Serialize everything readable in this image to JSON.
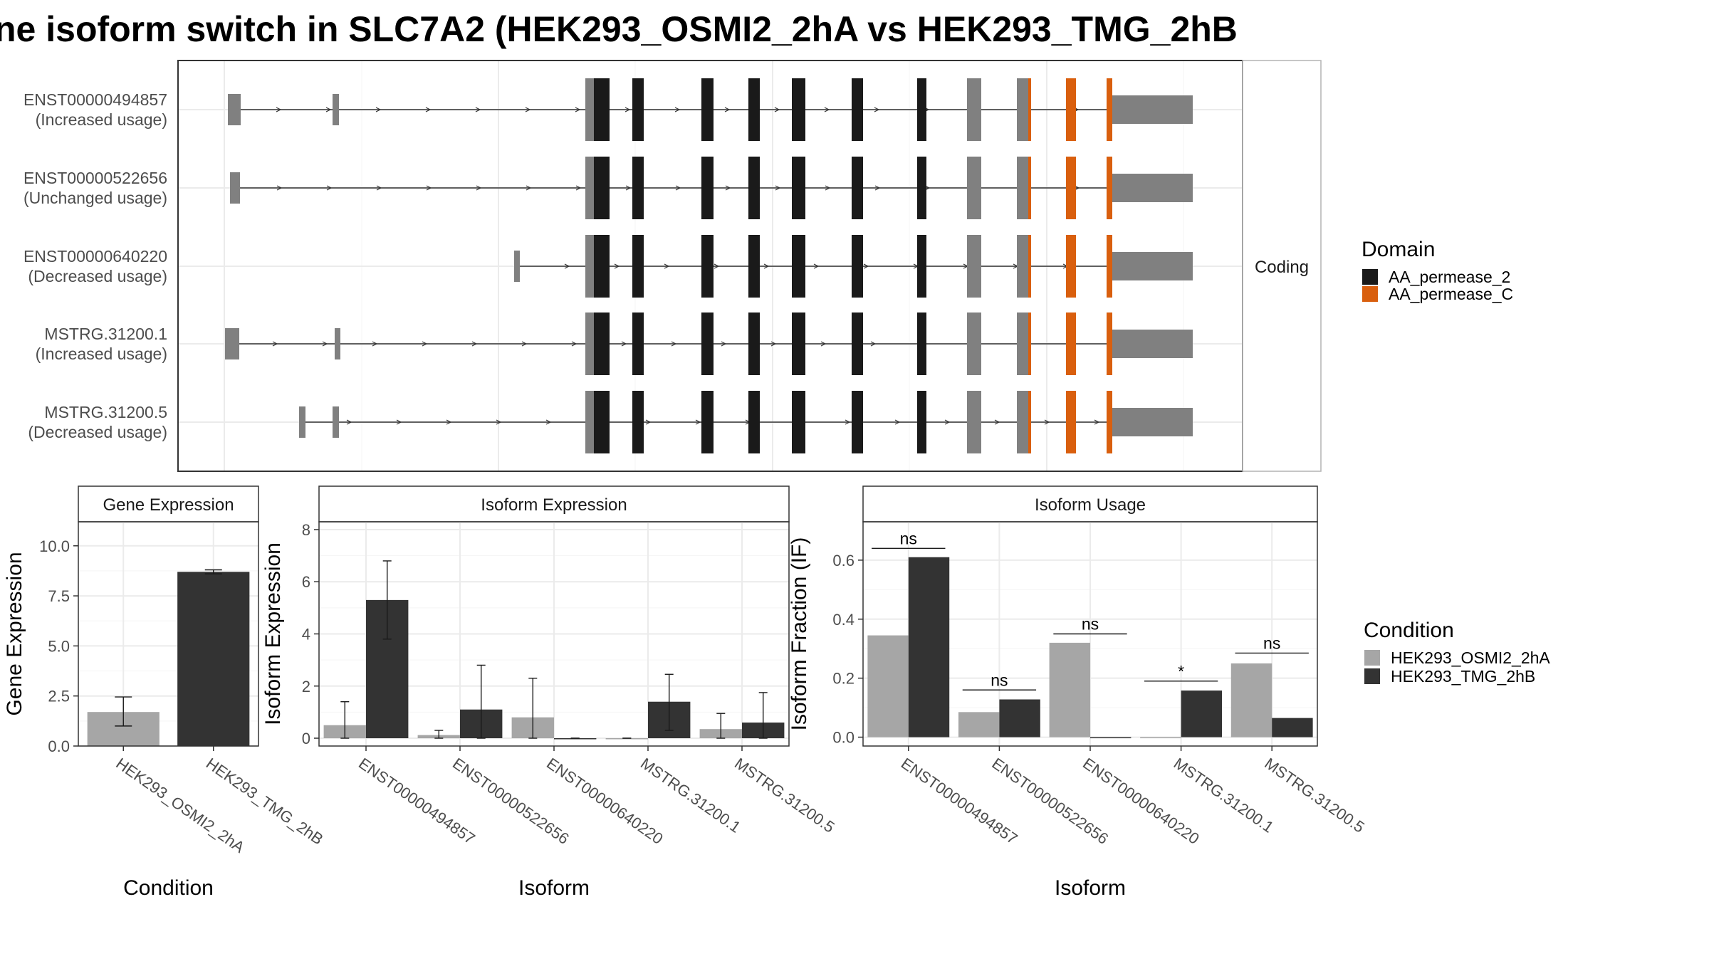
{
  "title": "ne isoform switch in SLC7A2 (HEK293_OSMI2_2hA vs HEK293_TMG_2hB",
  "colors": {
    "aa_permease_2": "#1a1a1a",
    "aa_permease_c": "#d95f0e",
    "utr": "#808080",
    "cond_a": "#a6a6a6",
    "cond_b": "#333333"
  },
  "chart_data": [
    {
      "type": "gene-structure",
      "strip_label": "Coding",
      "isoforms": [
        {
          "id": "ENST00000494857",
          "usage": "(Increased usage)"
        },
        {
          "id": "ENST00000522656",
          "usage": "(Unchanged usage)"
        },
        {
          "id": "ENST00000640220",
          "usage": "(Decreased usage)"
        },
        {
          "id": "MSTRG.31200.1",
          "usage": "(Increased usage)"
        },
        {
          "id": "MSTRG.31200.5",
          "usage": "(Decreased usage)"
        }
      ],
      "legend": {
        "title": "Domain",
        "items": [
          {
            "label": "AA_permease_2",
            "color": "#1a1a1a"
          },
          {
            "label": "AA_permease_C",
            "color": "#d95f0e"
          }
        ]
      }
    },
    {
      "type": "bar",
      "strip_label": "Gene Expression",
      "ylabel": "Gene Expression",
      "xlabel": "Condition",
      "ylim": [
        0,
        11.2
      ],
      "yticks": [
        "0.0",
        "2.5",
        "5.0",
        "7.5",
        "10.0"
      ],
      "ytick_values": [
        0,
        2.5,
        5.0,
        7.5,
        10.0
      ],
      "categories": [
        "HEK293_OSMI2_2hA",
        "HEK293_TMG_2hB"
      ],
      "values": [
        1.7,
        8.7
      ],
      "error_low": [
        1.0,
        8.6
      ],
      "error_high": [
        2.45,
        8.8
      ]
    },
    {
      "type": "bar",
      "strip_label": "Isoform Expression",
      "ylabel": "Isoform Expression",
      "xlabel": "Isoform",
      "ylim": [
        -0.3,
        8.3
      ],
      "yticks": [
        "0",
        "2",
        "4",
        "6",
        "8"
      ],
      "ytick_values": [
        0,
        2,
        4,
        6,
        8
      ],
      "categories": [
        "ENST00000494857",
        "ENST00000522656",
        "ENST00000640220",
        "MSTRG.31200.1",
        "MSTRG.31200.5"
      ],
      "series": [
        {
          "name": "HEK293_OSMI2_2hA",
          "values": [
            0.5,
            0.12,
            0.8,
            0.0,
            0.35
          ],
          "error_low": [
            0.0,
            0.0,
            0.0,
            0.0,
            0.0
          ],
          "error_high": [
            1.4,
            0.3,
            2.3,
            0.0,
            0.95
          ]
        },
        {
          "name": "HEK293_TMG_2hB",
          "values": [
            5.3,
            1.1,
            0.0,
            1.4,
            0.6
          ],
          "error_low": [
            3.8,
            0.0,
            0.0,
            0.3,
            0.0
          ],
          "error_high": [
            6.8,
            2.8,
            0.0,
            2.45,
            1.75
          ]
        }
      ]
    },
    {
      "type": "bar",
      "strip_label": "Isoform Usage",
      "ylabel": "Isoform Fraction (IF)",
      "xlabel": "Isoform",
      "ylim": [
        -0.03,
        0.73
      ],
      "yticks": [
        "0.0",
        "0.2",
        "0.4",
        "0.6"
      ],
      "ytick_values": [
        0,
        0.2,
        0.4,
        0.6
      ],
      "categories": [
        "ENST00000494857",
        "ENST00000522656",
        "ENST00000640220",
        "MSTRG.31200.1",
        "MSTRG.31200.5"
      ],
      "series": [
        {
          "name": "HEK293_OSMI2_2hA",
          "values": [
            0.345,
            0.085,
            0.32,
            0.0,
            0.25
          ]
        },
        {
          "name": "HEK293_TMG_2hB",
          "values": [
            0.61,
            0.128,
            0.0,
            0.158,
            0.065
          ]
        }
      ],
      "significance": [
        "ns",
        "ns",
        "ns",
        "*",
        "ns"
      ],
      "significance_y": [
        0.64,
        0.16,
        0.35,
        0.19,
        0.285
      ]
    }
  ],
  "condition_legend": {
    "title": "Condition",
    "items": [
      {
        "label": "HEK293_OSMI2_2hA",
        "color": "#a6a6a6"
      },
      {
        "label": "HEK293_TMG_2hB",
        "color": "#333333"
      }
    ]
  }
}
